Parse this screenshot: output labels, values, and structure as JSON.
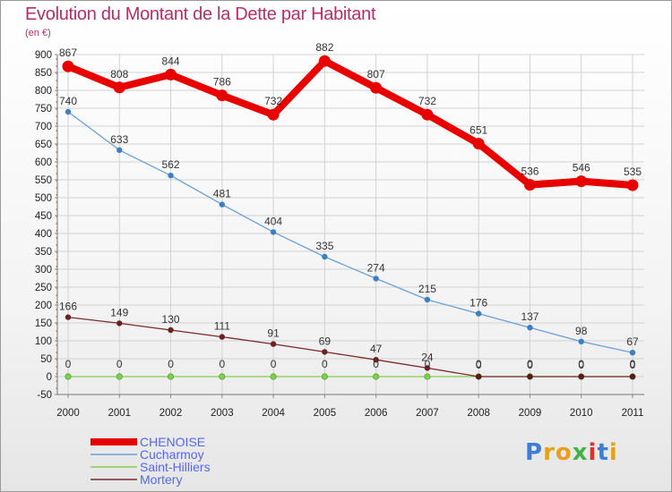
{
  "title": "Evolution du Montant de la Dette par Habitant",
  "subtitle": "(en €)",
  "logo": {
    "text": "Proxiti",
    "colors": [
      "#3b7fd4",
      "#e8a020",
      "#e8a020",
      "#47b04b",
      "#d8342c",
      "#3b7fd4",
      "#e8a020"
    ]
  },
  "chart_data": {
    "type": "line",
    "title": "Evolution du Montant de la Dette par Habitant",
    "ylabel": "(en €)",
    "xlabel": "",
    "x": [
      "2000",
      "2001",
      "2002",
      "2003",
      "2004",
      "2005",
      "2006",
      "2007",
      "2008",
      "2009",
      "2010",
      "2011"
    ],
    "ylim": [
      -50,
      900
    ],
    "yticks": [
      -50,
      0,
      50,
      100,
      150,
      200,
      250,
      300,
      350,
      400,
      450,
      500,
      550,
      600,
      650,
      700,
      750,
      800,
      850,
      900
    ],
    "legend_position": "bottom-left",
    "series": [
      {
        "name": "CHENOISE",
        "color": "#e80000",
        "values": [
          867,
          808,
          844,
          786,
          732,
          882,
          807,
          732,
          651,
          536,
          546,
          535
        ]
      },
      {
        "name": "Cucharmoy",
        "color": "#6aa0d6",
        "values": [
          740,
          633,
          562,
          481,
          404,
          335,
          274,
          215,
          176,
          137,
          98,
          67
        ]
      },
      {
        "name": "Saint-Hilliers",
        "color": "#80d050",
        "values": [
          0,
          0,
          0,
          0,
          0,
          0,
          0,
          0,
          0,
          0,
          0,
          0
        ]
      },
      {
        "name": "Mortery",
        "color": "#7a2a2a",
        "values": [
          166,
          149,
          130,
          111,
          91,
          69,
          47,
          24,
          0,
          0,
          0,
          0
        ]
      }
    ]
  }
}
